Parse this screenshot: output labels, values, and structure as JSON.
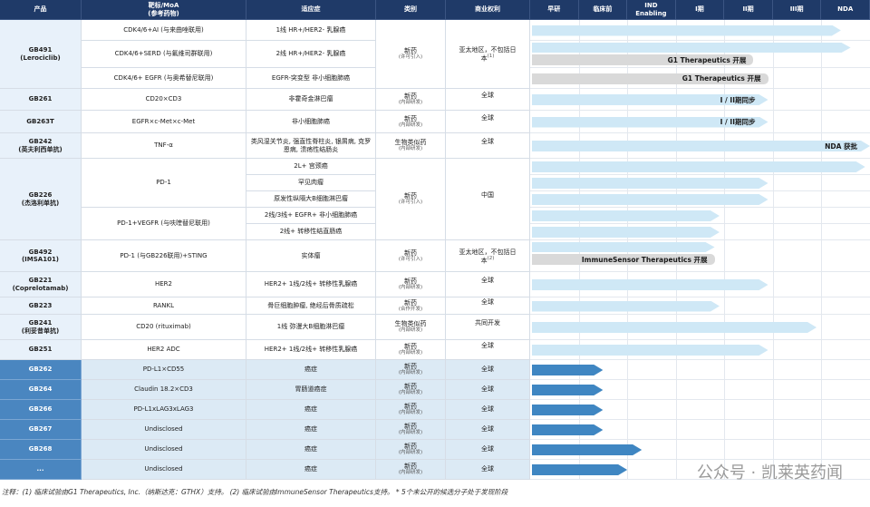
{
  "header": {
    "columns": [
      "产品",
      "靶标/MoA",
      "适应症",
      "类别",
      "商业权利"
    ],
    "target_sub": "(参考药物)",
    "stages": [
      "早研",
      "临床前",
      "IND Enabling",
      "I期",
      "II期",
      "III期",
      "NDA"
    ]
  },
  "programs": [
    {
      "product": "GB491",
      "alias": "(Lerociclib)",
      "category": "新药",
      "category_note": "(许可引入)",
      "rights": "亚太地区，不包括日本",
      "rights_note": "(1)",
      "targets": [
        {
          "name": "CDK4/6+AI (与来曲唑联用)",
          "rows": [
            {
              "indication": "1线 HR+/HER2- 乳腺癌",
              "progress": 6.4
            }
          ]
        },
        {
          "name": "CDK4/6+SERD (与氟维司群联用)",
          "rows": [
            {
              "indication": "2线 HR+/HER2- 乳腺癌",
              "progress": 6.6,
              "partner": "G1 Therapeutics 开展",
              "partner_progress": 4.6
            }
          ]
        },
        {
          "name": "CDK4/6+ EGFR (与奥希替尼联用)",
          "rows": [
            {
              "indication": "EGFR-突变型 非小细胞肺癌",
              "partner": "G1 Therapeutics 开展",
              "partner_progress": 4.9
            }
          ]
        }
      ]
    },
    {
      "product": "GB261",
      "category": "新药",
      "category_note": "(内部研发)",
      "rights": "全球",
      "targets": [
        {
          "name": "CD20×CD3",
          "rows": [
            {
              "indication": "非霍奇金淋巴瘤",
              "progress": 4.9,
              "label": "I / II期同步"
            }
          ]
        }
      ]
    },
    {
      "product": "GB263T",
      "category": "新药",
      "category_note": "(内部研发)",
      "rights": "全球",
      "targets": [
        {
          "name": "EGFR×c-Met×c-Met",
          "rows": [
            {
              "indication": "非小细胞肺癌",
              "progress": 4.9,
              "label": "I / II期同步"
            }
          ]
        }
      ]
    },
    {
      "product": "GB242",
      "alias": "(英夫利西单抗)",
      "category": "生物类似药",
      "category_note": "(内部研发)",
      "rights": "全球",
      "targets": [
        {
          "name": "TNF-α",
          "rows": [
            {
              "indication": "类风湿关节炎, 强直性脊柱炎, 银屑病, 克罗恩病, 溃疡性结肠炎",
              "progress": 7,
              "label": "NDA 获批"
            }
          ]
        }
      ]
    },
    {
      "product": "GB226",
      "alias": "(杰洛利单抗)",
      "category": "新药",
      "category_note": "(许可引入)",
      "rights": "中国",
      "targets": [
        {
          "name": "PD-1",
          "rows": [
            {
              "indication": "2L+ 宫颈癌",
              "progress": 6.9
            },
            {
              "indication": "罕见肉瘤",
              "progress": 4.9
            },
            {
              "indication": "原发性纵隔大B细胞淋巴瘤",
              "progress": 4.9
            }
          ]
        },
        {
          "name": "PD-1+VEGFR (与呋喹替尼联用)",
          "rows": [
            {
              "indication": "2线/3线+ EGFR+ 非小细胞肺癌",
              "progress": 3.9
            },
            {
              "indication": "2线+ 转移性结直肠癌",
              "progress": 3.9
            }
          ]
        }
      ]
    },
    {
      "product": "GB492",
      "alias": "(IMSA101)",
      "category": "新药",
      "category_note": "(许可引入)",
      "rights": "亚太地区，不包括日本",
      "rights_note": "(2)",
      "targets": [
        {
          "name": "PD-1 (与GB226联用)+STING",
          "rows": [
            {
              "indication": "实体瘤",
              "progress": 3.8,
              "partner": "ImmuneSensor Therapeutics 开展",
              "partner_progress": 3.8
            }
          ]
        }
      ]
    },
    {
      "product": "GB221",
      "alias": "(Coprelotamab)",
      "category": "新药",
      "category_note": "(内部研发)",
      "rights": "全球",
      "targets": [
        {
          "name": "HER2",
          "rows": [
            {
              "indication": "HER2+ 1线/2线+ 转移性乳腺癌",
              "progress": 4.9
            }
          ]
        }
      ]
    },
    {
      "product": "GB223",
      "category": "新药",
      "category_note": "(合作开发)",
      "rights": "全球",
      "targets": [
        {
          "name": "RANKL",
          "rows": [
            {
              "indication": "骨巨细胞肿瘤, 绝经后骨质疏松",
              "progress": 3.9
            }
          ]
        }
      ]
    },
    {
      "product": "GB241",
      "alias": "(利妥昔单抗)",
      "category": "生物类似药",
      "category_note": "(内部研发)",
      "rights": "共同开发",
      "targets": [
        {
          "name": "CD20 (rituximab)",
          "rows": [
            {
              "indication": "1线 弥漫大B细胞淋巴瘤",
              "progress": 5.9
            }
          ]
        }
      ]
    },
    {
      "product": "GB251",
      "category": "新药",
      "category_note": "(内部研发)",
      "rights": "全球",
      "targets": [
        {
          "name": "HER2 ADC",
          "rows": [
            {
              "indication": "HER2+ 1线/2线+ 转移性乳腺癌",
              "progress": 4.9
            }
          ]
        }
      ]
    }
  ],
  "early_programs": [
    {
      "product": "GB262",
      "target": "PD-L1×CD55",
      "indication": "癌症",
      "category": "新药",
      "category_note": "(内部研发)",
      "rights": "全球",
      "progress": 1.5
    },
    {
      "product": "GB264",
      "target": "Claudin 18.2×CD3",
      "indication": "胃肠道癌症",
      "category": "新药",
      "category_note": "(内部研发)",
      "rights": "全球",
      "progress": 1.5
    },
    {
      "product": "GB266",
      "target": "PD-L1xLAG3xLAG3",
      "indication": "癌症",
      "category": "新药",
      "category_note": "(内部研发)",
      "rights": "全球",
      "progress": 1.5
    },
    {
      "product": "GB267",
      "target": "Undisclosed",
      "indication": "癌症",
      "category": "新药",
      "category_note": "(内部研发)",
      "rights": "全球",
      "progress": 1.5
    },
    {
      "product": "GB268",
      "target": "Undisclosed",
      "indication": "癌症",
      "category": "新药",
      "category_note": "(内部研发)",
      "rights": "全球",
      "progress": 2.3
    },
    {
      "product": "...",
      "target": "Undisclosed",
      "indication": "癌症",
      "category": "新药",
      "category_note": "(内部研发)",
      "rights": "全球",
      "progress": 2.0
    }
  ],
  "notes": "注释：(1) 临床试验由G1 Therapeutics, Inc.（纳斯达克：GTHX）支持。 (2) 临床试验由ImmuneSensor Therapeutics支持。 * 5个未公开的候选分子处于发现阶段",
  "watermark": "公众号 · 凯莱英药闻"
}
